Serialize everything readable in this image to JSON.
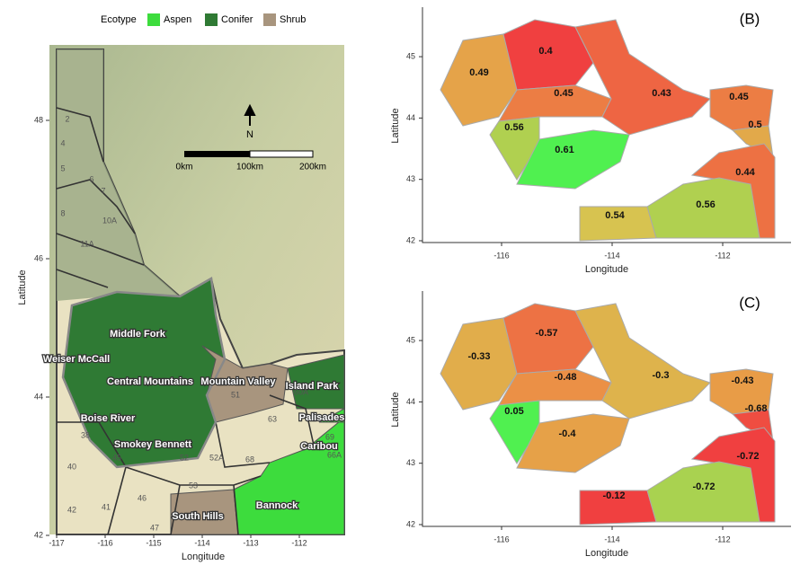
{
  "legend": {
    "title": "Ecotype",
    "items": [
      {
        "name": "Aspen",
        "color": "#3ddc3d"
      },
      {
        "name": "Conifer",
        "color": "#2f7a34"
      },
      {
        "name": "Shrub",
        "color": "#a8957e"
      }
    ]
  },
  "panel_a": {
    "x_label": "Longitude",
    "y_label": "Latitude",
    "xticks": [
      -117,
      -116,
      -115,
      -114,
      -113,
      -112
    ],
    "yticks": [
      42,
      44,
      46,
      48
    ],
    "scale_labels": [
      "0km",
      "100km",
      "200km"
    ],
    "north": "N",
    "zones": [
      "Middle Fork",
      "Weiser McCall",
      "Central Mountains",
      "Mountain Valley",
      "Island Park",
      "Boise River",
      "Palisades",
      "Smokey Bennett",
      "Caribou",
      "Bannock",
      "South Hills"
    ],
    "units": [
      "2",
      "4",
      "5",
      "6",
      "7",
      "8",
      "10A",
      "11A",
      "38",
      "40",
      "42",
      "41",
      "46",
      "47",
      "53",
      "52A",
      "68",
      "63",
      "51",
      "60A",
      "45",
      "52",
      "66A",
      "69"
    ]
  },
  "panel_b": {
    "tag": "(B)",
    "values": [
      0.49,
      0.4,
      0.45,
      0.43,
      0.45,
      0.5,
      0.56,
      0.61,
      0.44,
      0.54,
      0.56
    ],
    "x_label": "Longitude",
    "y_label": "Latitude",
    "xticks": [
      -116,
      -114,
      -112
    ],
    "yticks": [
      42,
      43,
      44,
      45
    ]
  },
  "panel_c": {
    "tag": "(C)",
    "values": [
      -0.33,
      -0.57,
      -0.48,
      -0.3,
      -0.43,
      -0.68,
      0.05,
      -0.4,
      -0.72,
      -0.72,
      -0.12
    ],
    "x_label": "Longitude",
    "y_label": "Latitude",
    "xticks": [
      -116,
      -114,
      -112
    ],
    "yticks": [
      42,
      43,
      44,
      45
    ]
  }
}
